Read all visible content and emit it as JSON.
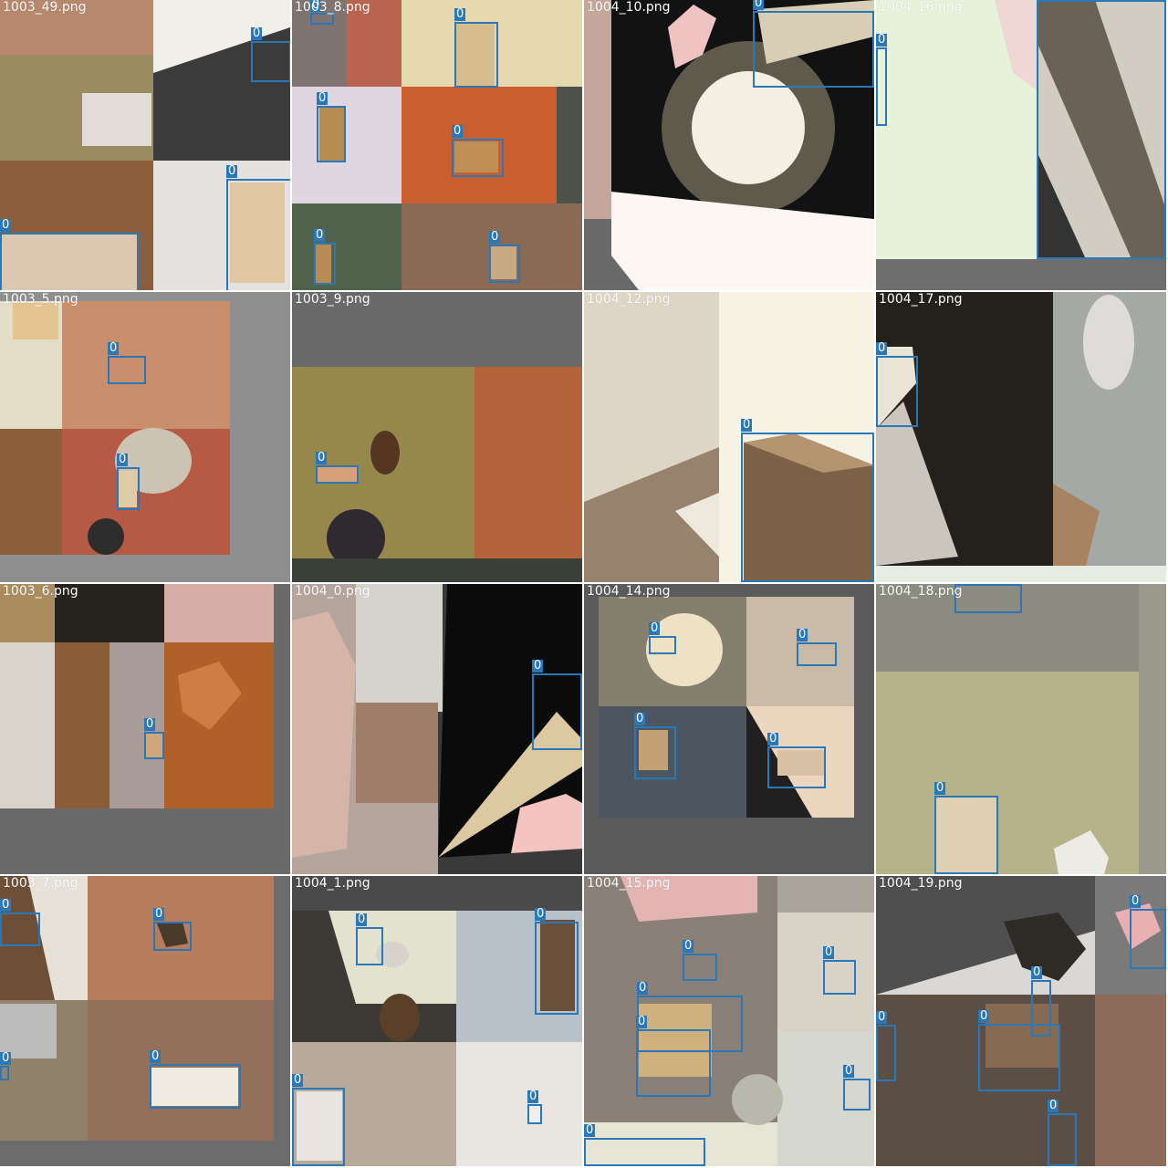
{
  "box_color": "#2a78b8",
  "class_label": "0",
  "tiles": [
    {
      "name": "1003_49.png"
    },
    {
      "name": "1003_8.png"
    },
    {
      "name": "1004_10.png"
    },
    {
      "name": "1004_16.png"
    },
    {
      "name": "1003_5.png"
    },
    {
      "name": "1003_9.png"
    },
    {
      "name": "1004_12.png"
    },
    {
      "name": "1004_17.png"
    },
    {
      "name": "1003_6.png"
    },
    {
      "name": "1004_0.png"
    },
    {
      "name": "1004_14.png"
    },
    {
      "name": "1004_18.png"
    },
    {
      "name": "1003_7.png"
    },
    {
      "name": "1004_1.png"
    },
    {
      "name": "1004_15.png"
    },
    {
      "name": "1004_19.png"
    }
  ]
}
